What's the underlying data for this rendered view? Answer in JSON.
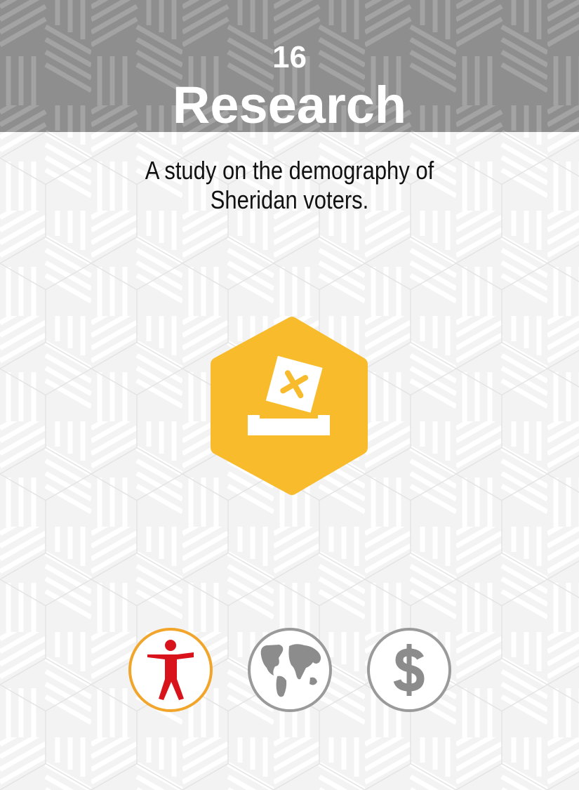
{
  "card": {
    "number": "16",
    "title": "Research",
    "description": "A study on the demography of Sheridan voters."
  },
  "icons": {
    "main": "ballot-box-icon",
    "stats": [
      {
        "name": "person-icon",
        "active": true
      },
      {
        "name": "globe-icon",
        "active": false
      },
      {
        "name": "dollar-icon",
        "active": false
      }
    ]
  },
  "colors": {
    "header_gray": "#909090",
    "background": "#f3f3f3",
    "hexagon_yellow": "#f7bb2b",
    "person_red": "#d9131b",
    "active_ring": "#f2a52b",
    "inactive_gray": "#9a9a9a"
  }
}
